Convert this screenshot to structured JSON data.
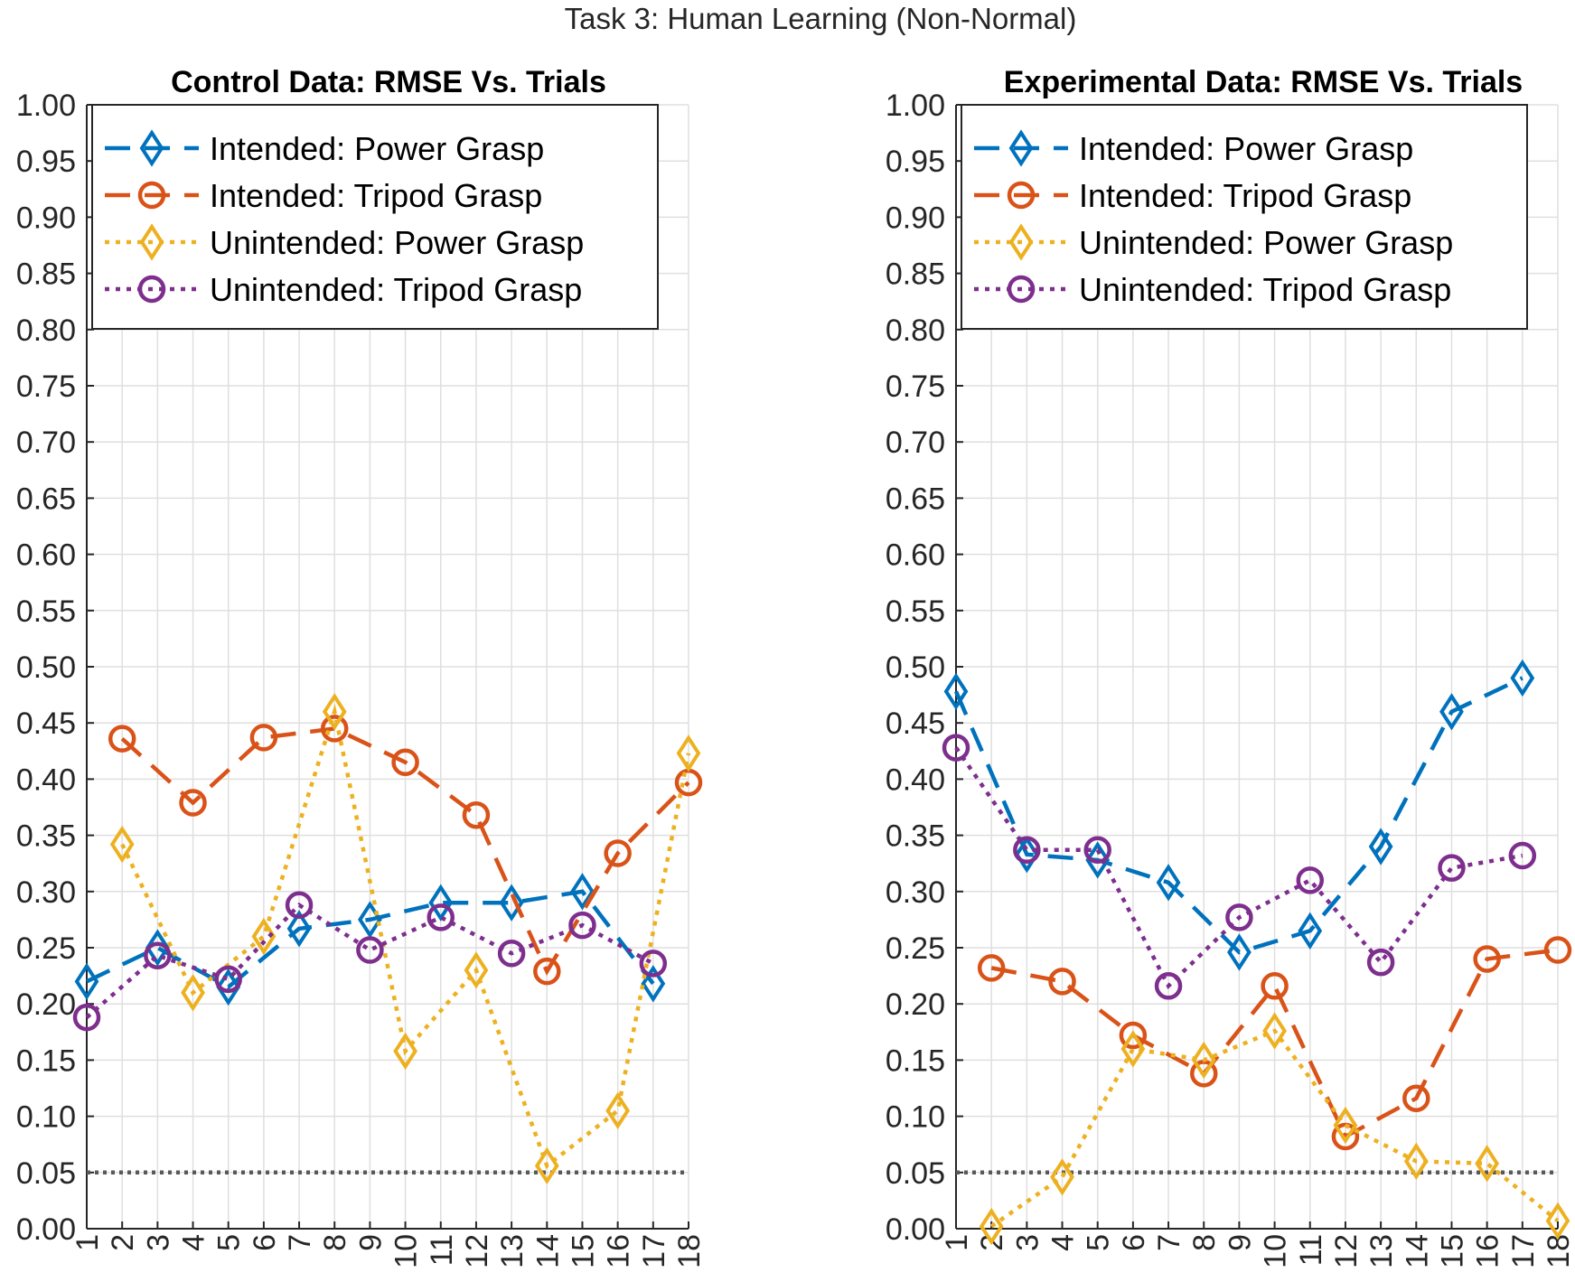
{
  "figure": {
    "suptitle": "Task 3: Human Learning (Non-Normal)"
  },
  "colors": {
    "intended_power": "#0072BD",
    "intended_tripod": "#D95319",
    "unintended_power": "#EDB120",
    "unintended_tripod": "#7E2F8E",
    "threshold": "#595959",
    "grid": "#DFDFDF",
    "axis": "#262626"
  },
  "chart_data": [
    {
      "type": "line",
      "title": "Control Data: RMSE Vs. Trials",
      "xlabel": "",
      "ylabel": "",
      "x": [
        1,
        2,
        3,
        4,
        5,
        6,
        7,
        8,
        9,
        10,
        11,
        12,
        13,
        14,
        15,
        16,
        17,
        18
      ],
      "xlim": [
        1,
        18
      ],
      "ylim": [
        0,
        1
      ],
      "yticks": [
        "0.00",
        "0.05",
        "0.10",
        "0.15",
        "0.20",
        "0.25",
        "0.30",
        "0.35",
        "0.40",
        "0.45",
        "0.50",
        "0.55",
        "0.60",
        "0.65",
        "0.70",
        "0.75",
        "0.80",
        "0.85",
        "0.90",
        "0.95",
        "1.00"
      ],
      "grid": true,
      "legend_position": "top",
      "threshold": 0.05,
      "series": [
        {
          "name": "Intended: Power Grasp",
          "color": "#0072BD",
          "marker": "diamond",
          "line": "dashed",
          "x": [
            1,
            3,
            5,
            7,
            9,
            11,
            13,
            15,
            17
          ],
          "values": [
            0.22,
            0.25,
            0.215,
            0.267,
            0.275,
            0.29,
            0.29,
            0.3,
            0.218
          ]
        },
        {
          "name": "Intended: Tripod Grasp",
          "color": "#D95319",
          "marker": "circle",
          "line": "dashed",
          "x": [
            2,
            4,
            6,
            8,
            10,
            12,
            14,
            16,
            18
          ],
          "values": [
            0.436,
            0.379,
            0.437,
            0.445,
            0.415,
            0.368,
            0.229,
            0.334,
            0.397
          ]
        },
        {
          "name": "Unintended: Power Grasp",
          "color": "#EDB120",
          "marker": "diamond",
          "line": "dotted",
          "x": [
            2,
            4,
            6,
            8,
            10,
            12,
            14,
            16,
            18
          ],
          "values": [
            0.342,
            0.21,
            0.26,
            0.46,
            0.158,
            0.23,
            0.056,
            0.105,
            0.423
          ]
        },
        {
          "name": "Unintended: Tripod Grasp",
          "color": "#7E2F8E",
          "marker": "circle",
          "line": "dotted",
          "x": [
            1,
            3,
            5,
            7,
            9,
            11,
            13,
            15,
            17
          ],
          "values": [
            0.188,
            0.243,
            0.222,
            0.288,
            0.248,
            0.277,
            0.245,
            0.27,
            0.236
          ]
        }
      ]
    },
    {
      "type": "line",
      "title": "Experimental Data: RMSE Vs. Trials",
      "xlabel": "",
      "ylabel": "",
      "x": [
        1,
        2,
        3,
        4,
        5,
        6,
        7,
        8,
        9,
        10,
        11,
        12,
        13,
        14,
        15,
        16,
        17,
        18
      ],
      "xlim": [
        1,
        18
      ],
      "ylim": [
        0,
        1
      ],
      "yticks": [
        "0.00",
        "0.05",
        "0.10",
        "0.15",
        "0.20",
        "0.25",
        "0.30",
        "0.35",
        "0.40",
        "0.45",
        "0.50",
        "0.55",
        "0.60",
        "0.65",
        "0.70",
        "0.75",
        "0.80",
        "0.85",
        "0.90",
        "0.95",
        "1.00"
      ],
      "grid": true,
      "legend_position": "top",
      "threshold": 0.05,
      "series": [
        {
          "name": "Intended: Power Grasp",
          "color": "#0072BD",
          "marker": "diamond",
          "line": "dashed",
          "x": [
            1,
            3,
            5,
            7,
            9,
            11,
            13,
            15,
            17
          ],
          "values": [
            0.478,
            0.333,
            0.328,
            0.308,
            0.246,
            0.265,
            0.34,
            0.46,
            0.49
          ]
        },
        {
          "name": "Intended: Tripod Grasp",
          "color": "#D95319",
          "marker": "circle",
          "line": "dashed",
          "x": [
            2,
            4,
            6,
            8,
            10,
            12,
            14,
            16,
            18
          ],
          "values": [
            0.232,
            0.22,
            0.172,
            0.138,
            0.216,
            0.082,
            0.116,
            0.24,
            0.248
          ]
        },
        {
          "name": "Unintended: Power Grasp",
          "color": "#EDB120",
          "marker": "diamond",
          "line": "dotted",
          "x": [
            2,
            4,
            6,
            8,
            10,
            12,
            14,
            16,
            18
          ],
          "values": [
            0.002,
            0.046,
            0.16,
            0.15,
            0.176,
            0.092,
            0.06,
            0.058,
            0.007
          ]
        },
        {
          "name": "Unintended: Tripod Grasp",
          "color": "#7E2F8E",
          "marker": "circle",
          "line": "dotted",
          "x": [
            1,
            3,
            5,
            7,
            9,
            11,
            13,
            15,
            17
          ],
          "values": [
            0.428,
            0.337,
            0.337,
            0.216,
            0.277,
            0.31,
            0.237,
            0.321,
            0.332
          ]
        }
      ]
    }
  ]
}
